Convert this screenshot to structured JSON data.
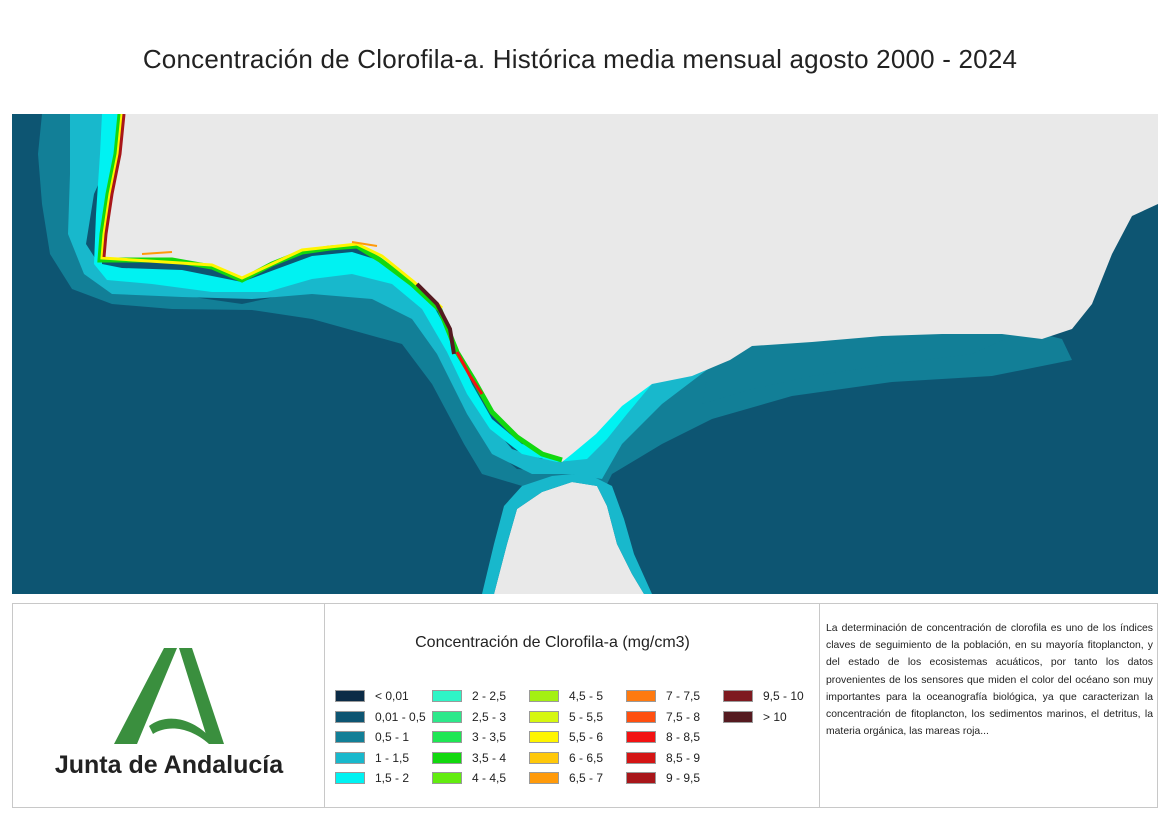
{
  "title": "Concentración de Clorofila-a. Histórica media mensual agosto 2000 - 2024",
  "colors": {
    "ocean_deep": "#0d5572",
    "ocean_mid": "#127f97",
    "ocean_shelf": "#18b8cc",
    "coast_cyan": "#00e8f0",
    "land": "#e9e9e9"
  },
  "logo": {
    "name": "Junta de Andalucía",
    "color": "#3a8f3e"
  },
  "legend": {
    "title": "Concentración de Clorofila-a (mg/cm3)",
    "items": [
      {
        "label": "< 0,01",
        "color": "#0b2b46"
      },
      {
        "label": "0,01 - 0,5",
        "color": "#0d5572"
      },
      {
        "label": "0,5 - 1",
        "color": "#127f97"
      },
      {
        "label": "1 - 1,5",
        "color": "#18b8cc"
      },
      {
        "label": "1,5 - 2",
        "color": "#00f2f2"
      },
      {
        "label": "2 - 2,5",
        "color": "#2ff5c6"
      },
      {
        "label": "2,5 - 3",
        "color": "#2de88a"
      },
      {
        "label": "3 - 3,5",
        "color": "#1ee654"
      },
      {
        "label": "3,5 - 4",
        "color": "#12d80e"
      },
      {
        "label": "4 - 4,5",
        "color": "#62ec10"
      },
      {
        "label": "4,5 - 5",
        "color": "#a4f012"
      },
      {
        "label": "5 - 5,5",
        "color": "#d6f710"
      },
      {
        "label": "5,5 - 6",
        "color": "#fff500"
      },
      {
        "label": "6 - 6,5",
        "color": "#ffc80a"
      },
      {
        "label": "6,5 - 7",
        "color": "#ff9a0a"
      },
      {
        "label": "7 - 7,5",
        "color": "#ff7a10"
      },
      {
        "label": "7,5 - 8",
        "color": "#ff4f10"
      },
      {
        "label": "8 - 8,5",
        "color": "#f21212"
      },
      {
        "label": "8,5 - 9",
        "color": "#d41515"
      },
      {
        "label": "9 - 9,5",
        "color": "#a8161a"
      },
      {
        "label": "9,5 - 10",
        "color": "#7e1a20"
      },
      {
        "label": "> 10",
        "color": "#551a20"
      }
    ]
  },
  "description": "La determinación de concentración de clorofila es uno de los índices claves de seguimiento de la población, en su mayoría fitoplancton, y del estado de los ecosistemas acuáticos, por tanto los datos provenientes de los sensores que miden el color del océano son muy importantes para la oceanografía biológica, ya que caracterizan la concentración de fitoplancton, los sedimentos marinos, el detritus, la materia orgánica, las mareas roja..."
}
